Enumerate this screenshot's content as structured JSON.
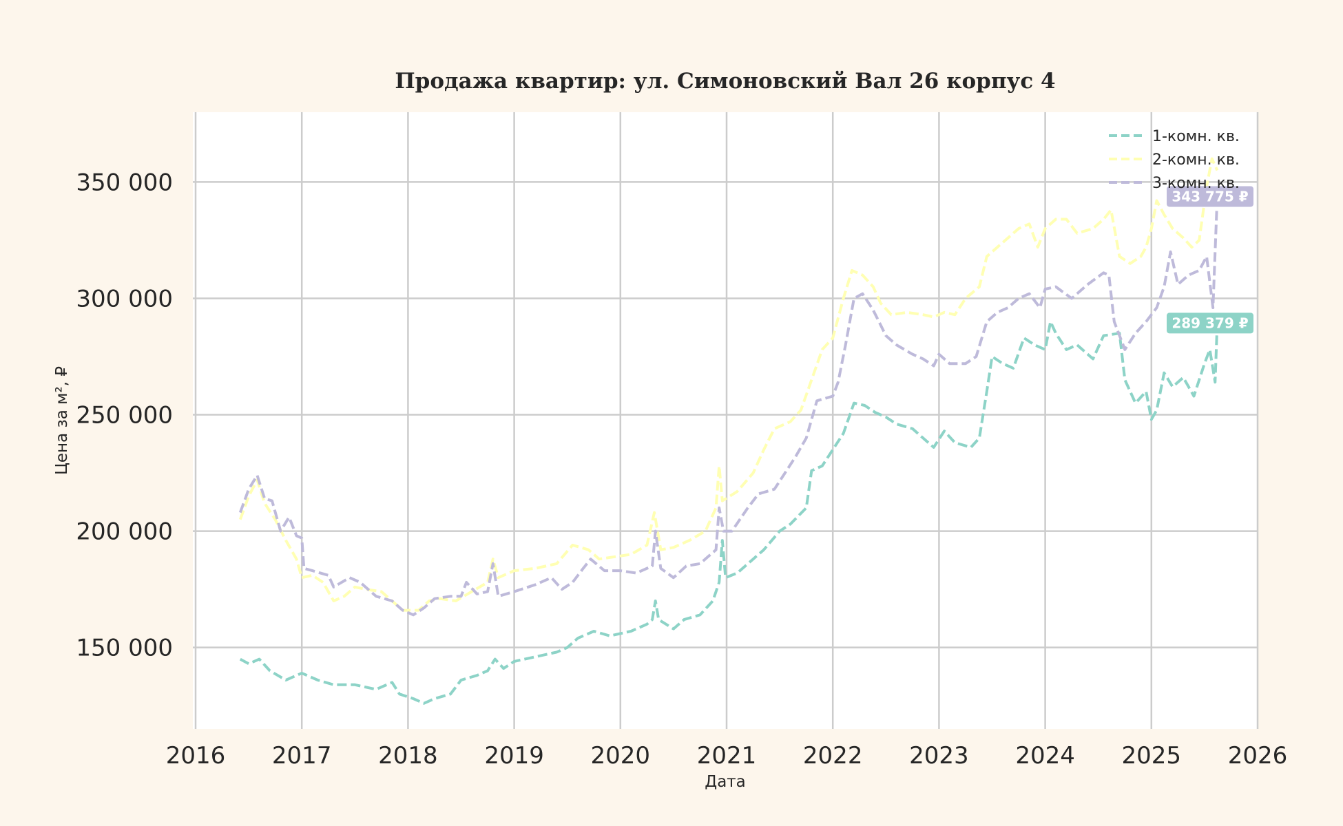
{
  "chart_data": {
    "type": "line",
    "title": "Продажа квартир: ул. Симоновский Вал 26 корпус 4",
    "xlabel": "Дата",
    "ylabel": "Цена за м², ₽",
    "x_ticks": [
      "2016",
      "2017",
      "2018",
      "2019",
      "2020",
      "2021",
      "2022",
      "2023",
      "2024",
      "2025",
      "2026"
    ],
    "xlim": [
      2016,
      2026
    ],
    "y_ticks": [
      150000,
      200000,
      250000,
      300000,
      350000
    ],
    "y_tick_labels": [
      "150 000",
      "200 000",
      "250 000",
      "300 000",
      "350 000"
    ],
    "ylim": [
      115000,
      380000
    ],
    "grid": true,
    "legend_position": "top-right",
    "line_style": "dashed",
    "series": [
      {
        "name": "1-комн. кв.",
        "color": "#8dd3c7",
        "end_label": "289 379 ₽",
        "points": [
          [
            2016.42,
            145000
          ],
          [
            2016.5,
            143000
          ],
          [
            2016.6,
            145000
          ],
          [
            2016.7,
            140000
          ],
          [
            2016.85,
            136000
          ],
          [
            2017.0,
            139000
          ],
          [
            2017.15,
            136000
          ],
          [
            2017.3,
            134000
          ],
          [
            2017.5,
            134000
          ],
          [
            2017.7,
            132000
          ],
          [
            2017.85,
            135000
          ],
          [
            2017.92,
            130000
          ],
          [
            2018.05,
            128000
          ],
          [
            2018.15,
            126000
          ],
          [
            2018.25,
            128000
          ],
          [
            2018.4,
            130000
          ],
          [
            2018.5,
            136000
          ],
          [
            2018.65,
            138000
          ],
          [
            2018.75,
            140000
          ],
          [
            2018.82,
            145000
          ],
          [
            2018.9,
            141000
          ],
          [
            2019.0,
            144000
          ],
          [
            2019.2,
            146000
          ],
          [
            2019.4,
            148000
          ],
          [
            2019.5,
            150000
          ],
          [
            2019.6,
            154000
          ],
          [
            2019.75,
            157000
          ],
          [
            2019.9,
            155000
          ],
          [
            2020.1,
            157000
          ],
          [
            2020.25,
            160000
          ],
          [
            2020.3,
            162000
          ],
          [
            2020.33,
            170000
          ],
          [
            2020.36,
            162000
          ],
          [
            2020.5,
            158000
          ],
          [
            2020.6,
            162000
          ],
          [
            2020.75,
            164000
          ],
          [
            2020.87,
            170000
          ],
          [
            2020.93,
            178000
          ],
          [
            2020.96,
            196000
          ],
          [
            2020.99,
            180000
          ],
          [
            2021.1,
            182000
          ],
          [
            2021.25,
            188000
          ],
          [
            2021.35,
            192000
          ],
          [
            2021.5,
            200000
          ],
          [
            2021.6,
            203000
          ],
          [
            2021.75,
            210000
          ],
          [
            2021.8,
            226000
          ],
          [
            2021.9,
            228000
          ],
          [
            2022.0,
            235000
          ],
          [
            2022.1,
            242000
          ],
          [
            2022.2,
            255000
          ],
          [
            2022.3,
            254000
          ],
          [
            2022.4,
            251000
          ],
          [
            2022.5,
            249000
          ],
          [
            2022.6,
            246000
          ],
          [
            2022.75,
            244000
          ],
          [
            2022.85,
            240000
          ],
          [
            2022.95,
            236000
          ],
          [
            2023.05,
            243000
          ],
          [
            2023.15,
            238000
          ],
          [
            2023.3,
            236000
          ],
          [
            2023.38,
            240000
          ],
          [
            2023.45,
            260000
          ],
          [
            2023.5,
            275000
          ],
          [
            2023.6,
            272000
          ],
          [
            2023.7,
            270000
          ],
          [
            2023.8,
            283000
          ],
          [
            2023.9,
            280000
          ],
          [
            2024.0,
            278000
          ],
          [
            2024.05,
            290000
          ],
          [
            2024.1,
            285000
          ],
          [
            2024.2,
            278000
          ],
          [
            2024.3,
            280000
          ],
          [
            2024.45,
            274000
          ],
          [
            2024.55,
            284000
          ],
          [
            2024.7,
            285000
          ],
          [
            2024.75,
            265000
          ],
          [
            2024.85,
            255000
          ],
          [
            2024.95,
            260000
          ],
          [
            2025.0,
            248000
          ],
          [
            2025.05,
            252000
          ],
          [
            2025.12,
            268000
          ],
          [
            2025.2,
            262000
          ],
          [
            2025.3,
            266000
          ],
          [
            2025.4,
            258000
          ],
          [
            2025.5,
            272000
          ],
          [
            2025.55,
            278000
          ],
          [
            2025.6,
            264000
          ],
          [
            2025.62,
            289379
          ]
        ]
      },
      {
        "name": "2-комн. кв.",
        "color": "#ffffb3",
        "end_label": "",
        "points": [
          [
            2016.42,
            205000
          ],
          [
            2016.5,
            215000
          ],
          [
            2016.58,
            222000
          ],
          [
            2016.65,
            212000
          ],
          [
            2016.75,
            205000
          ],
          [
            2016.85,
            196000
          ],
          [
            2016.95,
            188000
          ],
          [
            2017.0,
            180000
          ],
          [
            2017.1,
            181000
          ],
          [
            2017.2,
            178000
          ],
          [
            2017.3,
            170000
          ],
          [
            2017.4,
            172000
          ],
          [
            2017.5,
            176000
          ],
          [
            2017.6,
            175000
          ],
          [
            2017.75,
            174000
          ],
          [
            2017.85,
            170000
          ],
          [
            2017.95,
            166000
          ],
          [
            2018.1,
            166000
          ],
          [
            2018.2,
            170000
          ],
          [
            2018.3,
            171000
          ],
          [
            2018.45,
            170000
          ],
          [
            2018.6,
            174000
          ],
          [
            2018.75,
            178000
          ],
          [
            2018.8,
            188000
          ],
          [
            2018.85,
            180000
          ],
          [
            2019.0,
            183000
          ],
          [
            2019.2,
            184000
          ],
          [
            2019.4,
            186000
          ],
          [
            2019.55,
            194000
          ],
          [
            2019.7,
            192000
          ],
          [
            2019.8,
            188000
          ],
          [
            2019.95,
            189000
          ],
          [
            2020.1,
            190000
          ],
          [
            2020.25,
            194000
          ],
          [
            2020.32,
            208000
          ],
          [
            2020.38,
            192000
          ],
          [
            2020.5,
            193000
          ],
          [
            2020.65,
            196000
          ],
          [
            2020.8,
            200000
          ],
          [
            2020.9,
            210000
          ],
          [
            2020.93,
            228000
          ],
          [
            2020.96,
            213000
          ],
          [
            2021.1,
            217000
          ],
          [
            2021.25,
            225000
          ],
          [
            2021.35,
            235000
          ],
          [
            2021.45,
            244000
          ],
          [
            2021.6,
            247000
          ],
          [
            2021.7,
            252000
          ],
          [
            2021.8,
            265000
          ],
          [
            2021.9,
            278000
          ],
          [
            2022.0,
            283000
          ],
          [
            2022.1,
            300000
          ],
          [
            2022.18,
            312000
          ],
          [
            2022.28,
            310000
          ],
          [
            2022.38,
            305000
          ],
          [
            2022.45,
            298000
          ],
          [
            2022.55,
            293000
          ],
          [
            2022.7,
            294000
          ],
          [
            2022.85,
            293000
          ],
          [
            2022.95,
            292000
          ],
          [
            2023.05,
            294000
          ],
          [
            2023.15,
            293000
          ],
          [
            2023.25,
            300000
          ],
          [
            2023.38,
            305000
          ],
          [
            2023.45,
            318000
          ],
          [
            2023.55,
            322000
          ],
          [
            2023.65,
            326000
          ],
          [
            2023.75,
            330000
          ],
          [
            2023.85,
            332000
          ],
          [
            2023.93,
            322000
          ],
          [
            2024.0,
            330000
          ],
          [
            2024.1,
            334000
          ],
          [
            2024.2,
            334000
          ],
          [
            2024.3,
            328000
          ],
          [
            2024.45,
            330000
          ],
          [
            2024.55,
            334000
          ],
          [
            2024.62,
            338000
          ],
          [
            2024.7,
            318000
          ],
          [
            2024.8,
            315000
          ],
          [
            2024.9,
            318000
          ],
          [
            2024.95,
            322000
          ],
          [
            2025.0,
            330000
          ],
          [
            2025.05,
            342000
          ],
          [
            2025.12,
            336000
          ],
          [
            2025.2,
            330000
          ],
          [
            2025.3,
            326000
          ],
          [
            2025.38,
            322000
          ],
          [
            2025.45,
            325000
          ],
          [
            2025.52,
            348000
          ],
          [
            2025.57,
            360000
          ],
          [
            2025.62,
            355000
          ]
        ]
      },
      {
        "name": "3-комн. кв.",
        "color": "#bebada",
        "end_label": "343 775 ₽",
        "points": [
          [
            2016.42,
            208000
          ],
          [
            2016.5,
            218000
          ],
          [
            2016.58,
            224000
          ],
          [
            2016.65,
            214000
          ],
          [
            2016.72,
            213000
          ],
          [
            2016.8,
            200000
          ],
          [
            2016.88,
            206000
          ],
          [
            2016.95,
            198000
          ],
          [
            2017.0,
            197000
          ],
          [
            2017.02,
            184000
          ],
          [
            2017.1,
            183000
          ],
          [
            2017.25,
            181000
          ],
          [
            2017.3,
            176000
          ],
          [
            2017.45,
            180000
          ],
          [
            2017.55,
            178000
          ],
          [
            2017.7,
            172000
          ],
          [
            2017.85,
            170000
          ],
          [
            2017.95,
            166000
          ],
          [
            2018.05,
            164000
          ],
          [
            2018.15,
            167000
          ],
          [
            2018.25,
            171000
          ],
          [
            2018.4,
            172000
          ],
          [
            2018.5,
            172000
          ],
          [
            2018.55,
            178000
          ],
          [
            2018.65,
            173000
          ],
          [
            2018.75,
            174000
          ],
          [
            2018.8,
            186000
          ],
          [
            2018.85,
            172000
          ],
          [
            2019.0,
            174000
          ],
          [
            2019.2,
            177000
          ],
          [
            2019.35,
            180000
          ],
          [
            2019.45,
            175000
          ],
          [
            2019.55,
            178000
          ],
          [
            2019.65,
            184000
          ],
          [
            2019.72,
            188000
          ],
          [
            2019.85,
            183000
          ],
          [
            2020.0,
            183000
          ],
          [
            2020.15,
            182000
          ],
          [
            2020.3,
            185000
          ],
          [
            2020.33,
            200000
          ],
          [
            2020.38,
            184000
          ],
          [
            2020.5,
            180000
          ],
          [
            2020.62,
            185000
          ],
          [
            2020.75,
            186000
          ],
          [
            2020.9,
            192000
          ],
          [
            2020.93,
            210000
          ],
          [
            2020.97,
            200000
          ],
          [
            2021.05,
            200000
          ],
          [
            2021.2,
            210000
          ],
          [
            2021.3,
            216000
          ],
          [
            2021.45,
            218000
          ],
          [
            2021.55,
            225000
          ],
          [
            2021.65,
            232000
          ],
          [
            2021.75,
            240000
          ],
          [
            2021.85,
            256000
          ],
          [
            2022.0,
            258000
          ],
          [
            2022.05,
            264000
          ],
          [
            2022.12,
            280000
          ],
          [
            2022.2,
            300000
          ],
          [
            2022.28,
            302000
          ],
          [
            2022.38,
            295000
          ],
          [
            2022.5,
            284000
          ],
          [
            2022.6,
            280000
          ],
          [
            2022.75,
            276000
          ],
          [
            2022.85,
            274000
          ],
          [
            2022.95,
            271000
          ],
          [
            2023.0,
            276000
          ],
          [
            2023.1,
            272000
          ],
          [
            2023.25,
            272000
          ],
          [
            2023.35,
            275000
          ],
          [
            2023.45,
            290000
          ],
          [
            2023.55,
            294000
          ],
          [
            2023.65,
            296000
          ],
          [
            2023.75,
            300000
          ],
          [
            2023.85,
            302000
          ],
          [
            2023.95,
            296000
          ],
          [
            2024.0,
            304000
          ],
          [
            2024.1,
            305000
          ],
          [
            2024.25,
            300000
          ],
          [
            2024.4,
            306000
          ],
          [
            2024.55,
            311000
          ],
          [
            2024.6,
            310000
          ],
          [
            2024.65,
            290000
          ],
          [
            2024.75,
            278000
          ],
          [
            2024.85,
            285000
          ],
          [
            2024.95,
            290000
          ],
          [
            2025.05,
            296000
          ],
          [
            2025.12,
            305000
          ],
          [
            2025.18,
            320000
          ],
          [
            2025.25,
            306000
          ],
          [
            2025.35,
            310000
          ],
          [
            2025.45,
            312000
          ],
          [
            2025.52,
            318000
          ],
          [
            2025.58,
            296000
          ],
          [
            2025.62,
            343775
          ]
        ]
      }
    ]
  }
}
